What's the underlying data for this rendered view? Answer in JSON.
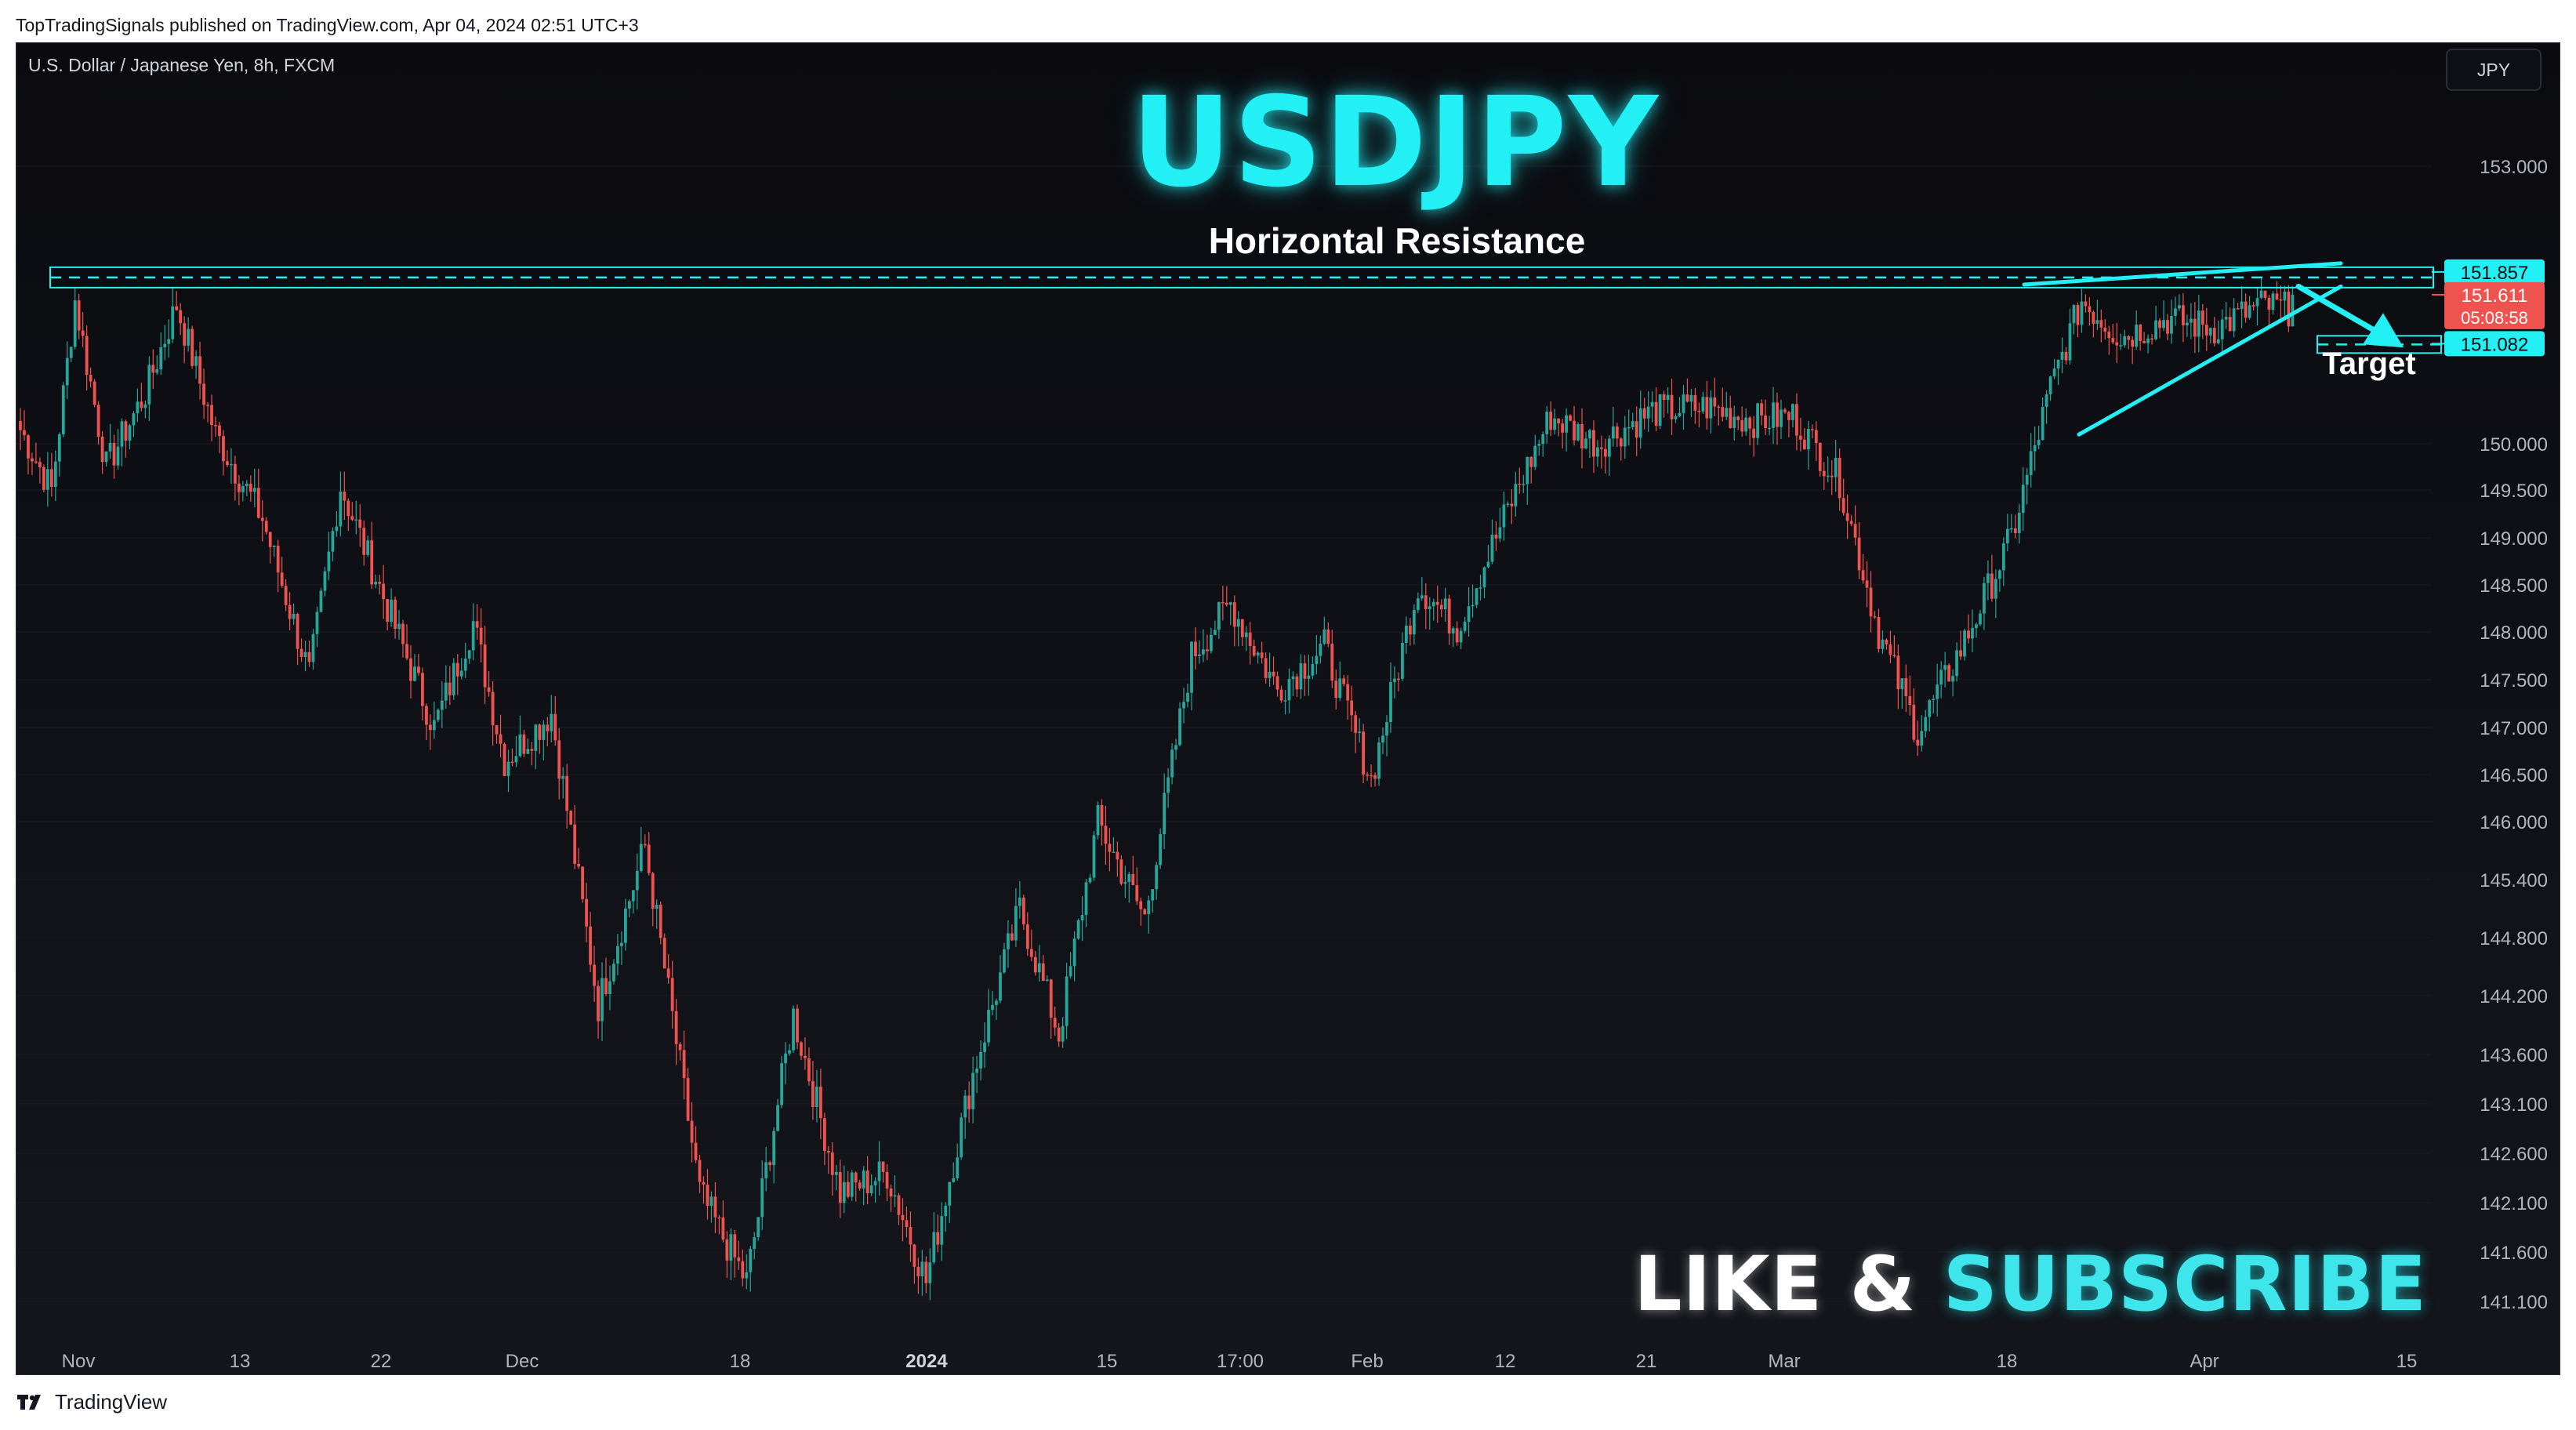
{
  "header": {
    "published_line": "TopTradingSignals published on TradingView.com, Apr 04, 2024 02:51 UTC+3"
  },
  "chart_header": {
    "symbol_line": "U.S. Dollar / Japanese Yen, 8h, FXCM",
    "currency_button": "JPY"
  },
  "overlay": {
    "title": "USDJPY",
    "resistance_label": "Horizontal Resistance",
    "target_label": "Target",
    "cta_like": "LIKE & ",
    "cta_subscribe": "SUBSCRIBE"
  },
  "footer": {
    "brand": "TradingView"
  },
  "colors": {
    "up": "#26a69a",
    "down": "#ef5350",
    "accent": "#22f0f5",
    "price_tag": "#ef5350"
  },
  "chart_data": {
    "type": "candlestick",
    "title": "USDJPY",
    "symbol": "U.S. Dollar / Japanese Yen, 8h, FXCM",
    "x_tick_labels": [
      "Nov",
      "13",
      "22",
      "Dec",
      "18",
      "2024",
      "15",
      "17:00",
      "Feb",
      "12",
      "21",
      "Mar",
      "18",
      "Apr",
      "15"
    ],
    "y_tick_labels": [
      "153.000",
      "150.000",
      "149.500",
      "149.000",
      "148.500",
      "148.000",
      "147.500",
      "147.000",
      "146.500",
      "146.000",
      "145.400",
      "144.800",
      "144.200",
      "143.600",
      "143.100",
      "142.600",
      "142.100",
      "141.600",
      "141.100"
    ],
    "y_range": [
      140.9,
      153.5
    ],
    "close_path": [
      {
        "x": 0,
        "y": 150.15
      },
      {
        "x": 8,
        "y": 149.5
      },
      {
        "x": 14,
        "y": 151.55
      },
      {
        "x": 22,
        "y": 149.75
      },
      {
        "x": 32,
        "y": 150.55
      },
      {
        "x": 40,
        "y": 151.5
      },
      {
        "x": 50,
        "y": 150.1
      },
      {
        "x": 62,
        "y": 149.2
      },
      {
        "x": 74,
        "y": 147.55
      },
      {
        "x": 82,
        "y": 149.55
      },
      {
        "x": 96,
        "y": 148.05
      },
      {
        "x": 106,
        "y": 147.0
      },
      {
        "x": 116,
        "y": 148.1
      },
      {
        "x": 124,
        "y": 146.65
      },
      {
        "x": 136,
        "y": 147.15
      },
      {
        "x": 148,
        "y": 144.1
      },
      {
        "x": 160,
        "y": 145.75
      },
      {
        "x": 174,
        "y": 142.2
      },
      {
        "x": 186,
        "y": 141.3
      },
      {
        "x": 198,
        "y": 144.0
      },
      {
        "x": 210,
        "y": 142.2
      },
      {
        "x": 222,
        "y": 142.4
      },
      {
        "x": 232,
        "y": 141.3
      },
      {
        "x": 244,
        "y": 143.4
      },
      {
        "x": 256,
        "y": 145.1
      },
      {
        "x": 266,
        "y": 143.8
      },
      {
        "x": 276,
        "y": 146.0
      },
      {
        "x": 288,
        "y": 145.0
      },
      {
        "x": 300,
        "y": 147.75
      },
      {
        "x": 310,
        "y": 148.3
      },
      {
        "x": 322,
        "y": 147.4
      },
      {
        "x": 334,
        "y": 147.85
      },
      {
        "x": 346,
        "y": 146.45
      },
      {
        "x": 358,
        "y": 148.5
      },
      {
        "x": 368,
        "y": 148.05
      },
      {
        "x": 380,
        "y": 149.2
      },
      {
        "x": 392,
        "y": 150.3
      },
      {
        "x": 404,
        "y": 150.0
      },
      {
        "x": 418,
        "y": 150.35
      },
      {
        "x": 432,
        "y": 150.4
      },
      {
        "x": 444,
        "y": 150.25
      },
      {
        "x": 454,
        "y": 150.3
      },
      {
        "x": 466,
        "y": 149.6
      },
      {
        "x": 476,
        "y": 148.0
      },
      {
        "x": 486,
        "y": 146.95
      },
      {
        "x": 498,
        "y": 147.9
      },
      {
        "x": 510,
        "y": 149.0
      },
      {
        "x": 520,
        "y": 150.6
      },
      {
        "x": 528,
        "y": 151.55
      },
      {
        "x": 538,
        "y": 151.15
      },
      {
        "x": 550,
        "y": 151.35
      },
      {
        "x": 562,
        "y": 151.25
      },
      {
        "x": 574,
        "y": 151.5
      },
      {
        "x": 582,
        "y": 151.45
      }
    ],
    "levels": [
      {
        "name": "Horizontal Resistance",
        "value": 151.857
      },
      {
        "name": "Target",
        "value": 151.082
      }
    ],
    "last_price": 151.611,
    "countdown": "05:08:58",
    "price_tags": [
      "151.857",
      "151.611",
      "151.082"
    ]
  }
}
